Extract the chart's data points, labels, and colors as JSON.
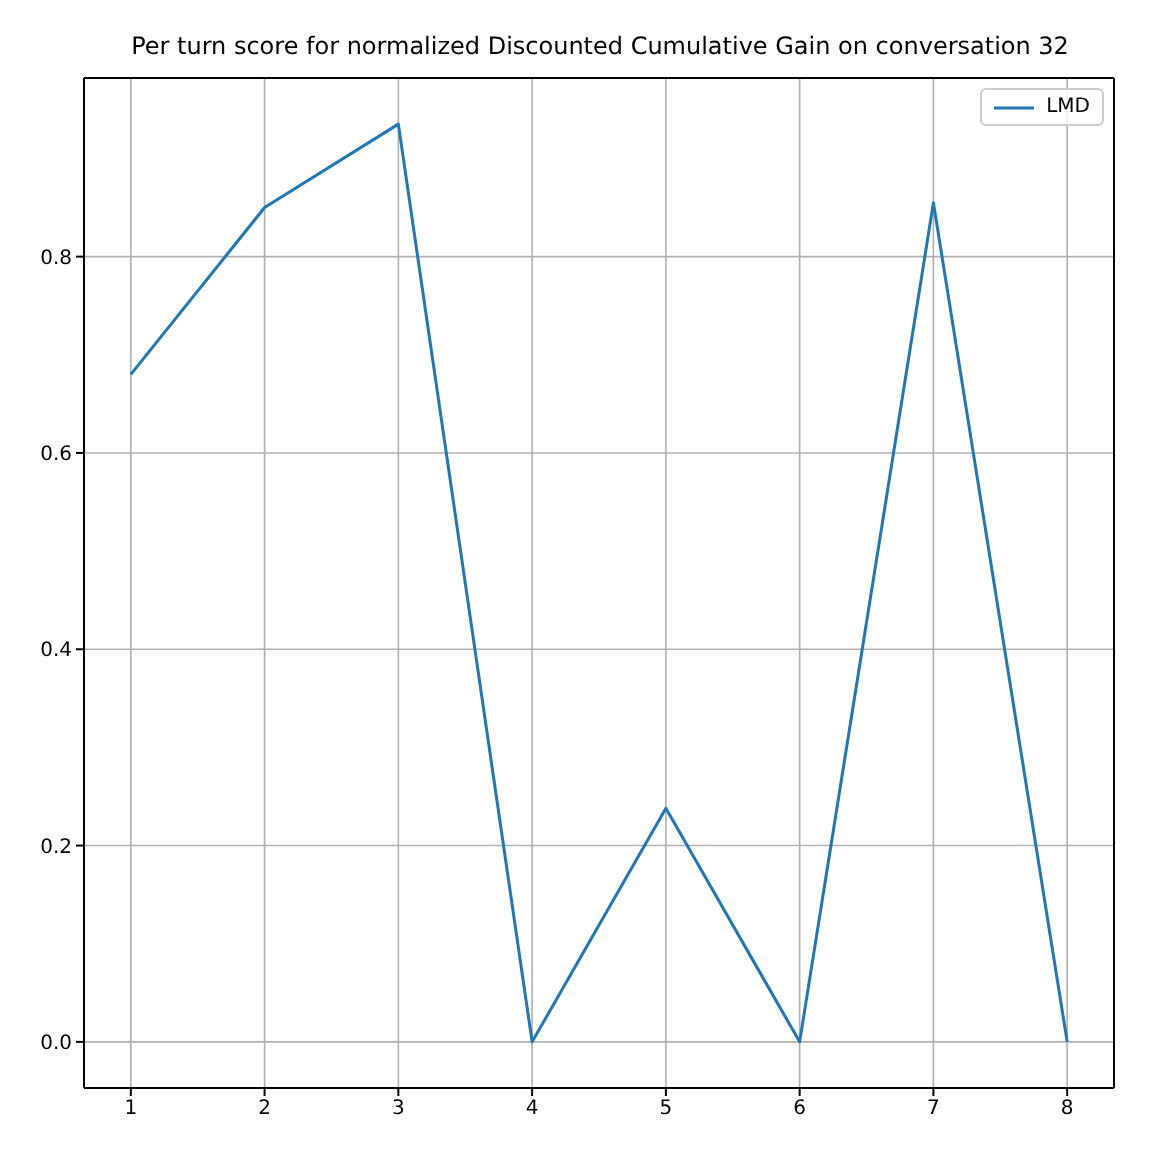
{
  "chart_data": {
    "type": "line",
    "title": "Per turn score for normalized Discounted Cumulative Gain on conversation 32",
    "x": [
      1,
      2,
      3,
      4,
      5,
      6,
      7,
      8
    ],
    "series": [
      {
        "name": "LMD",
        "color": "#1f77b4",
        "values": [
          0.68,
          0.85,
          0.935,
          0,
          0.238,
          0,
          0.855,
          0
        ]
      }
    ],
    "xlim": [
      0.65,
      8.35
    ],
    "xticks": [
      1,
      2,
      3,
      4,
      5,
      6,
      7,
      8
    ],
    "ylim": [
      -0.047,
      0.982
    ],
    "yticks": [
      {
        "value": 0,
        "label": "0.0"
      },
      0.2,
      0.4,
      0.6,
      0.8
    ],
    "grid": true,
    "legend": "top right",
    "line_style": "solid"
  }
}
